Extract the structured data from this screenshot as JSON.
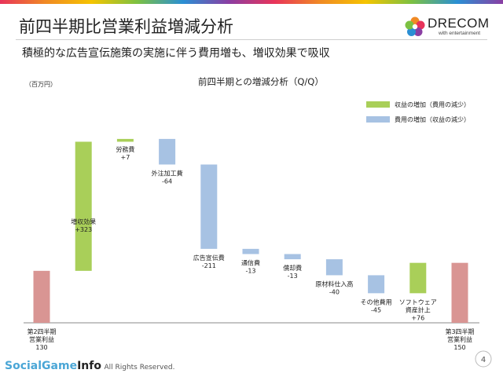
{
  "slide": {
    "title": "前四半期比営業利益増減分析",
    "subtitle": "積極的な広告宣伝施策の実施に伴う費用増も、増収効果で吸収",
    "unit_label": "（百万円）",
    "page_number": "4",
    "copyright": "All Rights Reserved."
  },
  "logo": {
    "name": "DRECOM",
    "tagline": "with entertainment"
  },
  "watermark": {
    "part1": "SocialGame",
    "part2": "Info"
  },
  "colors": {
    "total": "#d99593",
    "increase": "#a9cf59",
    "decrease": "#a7c2e3",
    "line": "#888888"
  },
  "legend": [
    {
      "label": "収益の増加（費用の減少）",
      "color": "#a9cf59"
    },
    {
      "label": "費用の増加（収益の減少）",
      "color": "#a7c2e3"
    }
  ],
  "chart_data": {
    "type": "bar",
    "subtype": "waterfall",
    "title": "前四半期との増減分析（Q/Q）",
    "ylabel": "（百万円）",
    "ylim": [
      0,
      560
    ],
    "steps": [
      {
        "label": "第2四半期\n営業利益",
        "value": 130,
        "value_label": "130",
        "kind": "total"
      },
      {
        "label": "増収効果",
        "value": 323,
        "value_label": "+323",
        "kind": "increase"
      },
      {
        "label": "労務費",
        "value": 7,
        "value_label": "+7",
        "kind": "increase"
      },
      {
        "label": "外注加工費",
        "value": -64,
        "value_label": "-64",
        "kind": "decrease"
      },
      {
        "label": "広告宣伝費",
        "value": -211,
        "value_label": "-211",
        "kind": "decrease"
      },
      {
        "label": "通信費",
        "value": -13,
        "value_label": "-13",
        "kind": "decrease"
      },
      {
        "label": "償却費",
        "value": -13,
        "value_label": "-13",
        "kind": "decrease"
      },
      {
        "label": "原材料仕入高",
        "value": -40,
        "value_label": "-40",
        "kind": "decrease"
      },
      {
        "label": "その他費用",
        "value": -45,
        "value_label": "-45",
        "kind": "decrease"
      },
      {
        "label": "ソフトウェア\n資産計上",
        "value": 76,
        "value_label": "+76",
        "kind": "increase"
      },
      {
        "label": "第3四半期\n営業利益",
        "value": 150,
        "value_label": "150",
        "kind": "total"
      }
    ]
  }
}
